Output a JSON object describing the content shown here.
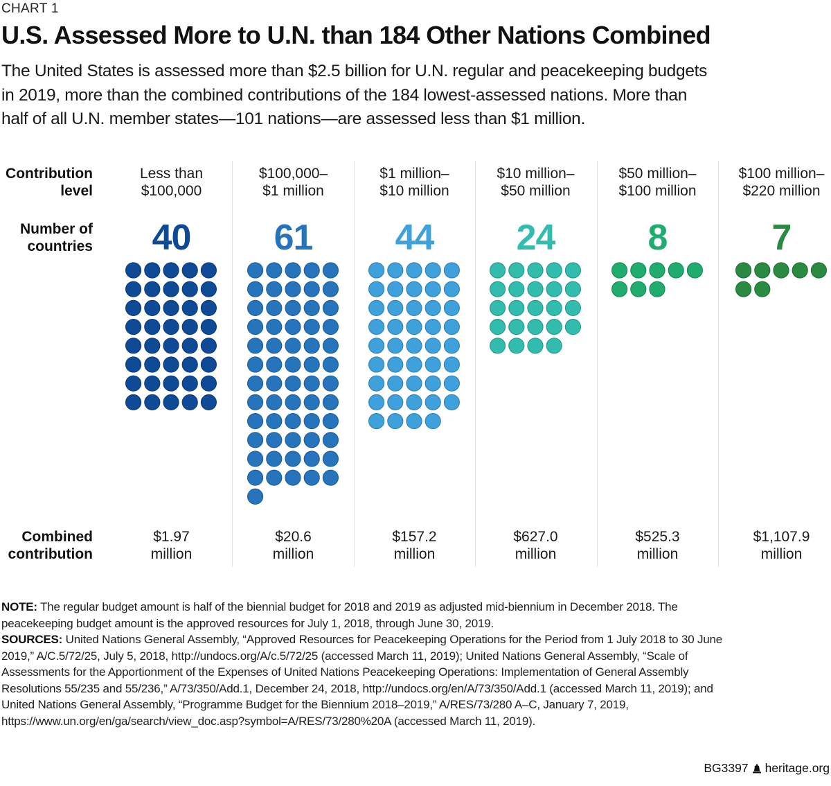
{
  "header": {
    "kicker": "CHART 1",
    "title": "U.S. Assessed More to U.N. than 184 Other Nations Combined",
    "subtitle_lines": [
      "The United States is assessed more than $2.5 billion for U.N. regular and peacekeeping budgets",
      "in 2019, more than the combined contributions of the 184 lowest-assessed nations. More than",
      "half of all U.N. member states—101 nations—are assessed less than $1 million."
    ]
  },
  "row_labels": {
    "contribution_level": [
      "Contribution",
      "level"
    ],
    "number_of_countries": [
      "Number of",
      "countries"
    ],
    "combined_contribution": [
      "Combined",
      "contribution"
    ]
  },
  "chart_data": {
    "type": "table",
    "title": "U.S. Assessed More to U.N. than 184 Other Nations Combined",
    "description": "Pictogram: each dot represents one country, grouped by U.N. assessment level (2019)",
    "dots_per_row": 5,
    "columns": [
      {
        "level_lines": [
          "Less than",
          "$100,000"
        ],
        "countries": 40,
        "combined_lines": [
          "$1.97",
          "million"
        ],
        "combined_millions": 1.97,
        "color": "#0f4a96"
      },
      {
        "level_lines": [
          "$100,000–",
          "$1 million"
        ],
        "countries": 61,
        "combined_lines": [
          "$20.6",
          "million"
        ],
        "combined_millions": 20.6,
        "color": "#2675bc"
      },
      {
        "level_lines": [
          "$1 million–",
          "$10 million"
        ],
        "countries": 44,
        "combined_lines": [
          "$157.2",
          "million"
        ],
        "combined_millions": 157.2,
        "color": "#3ea1dc"
      },
      {
        "level_lines": [
          "$10 million–",
          "$50 million"
        ],
        "countries": 24,
        "combined_lines": [
          "$627.0",
          "million"
        ],
        "combined_millions": 627.0,
        "color": "#32bcae"
      },
      {
        "level_lines": [
          "$50 million–",
          "$100 million"
        ],
        "countries": 8,
        "combined_lines": [
          "$525.3",
          "million"
        ],
        "combined_millions": 525.3,
        "color": "#1fac6e"
      },
      {
        "level_lines": [
          "$100 million–",
          "$220 million"
        ],
        "countries": 7,
        "combined_lines": [
          "$1,107.9",
          "million"
        ],
        "combined_millions": 1107.9,
        "color": "#2a8a42"
      }
    ]
  },
  "notes": {
    "note_label": "NOTE:",
    "note_lines": [
      " The regular budget amount is half of the biennial budget for 2018 and 2019 as adjusted mid-biennium in December 2018. The",
      "peacekeeping budget amount is the approved resources for July 1, 2018, through June 30, 2019."
    ],
    "sources_label": "SOURCES:",
    "sources_lines": [
      " United Nations General Assembly, “Approved Resources for Peacekeeping Operations for the Period from 1 July 2018 to 30 June",
      "2019,” A/C.5/72/25, July 5, 2018, http://undocs.org/A/c.5/72/25 (accessed March 11, 2019); United Nations General Assembly, “Scale of",
      "Assessments for the Apportionment of the Expenses of United Nations Peacekeeping Operations: Implementation of General Assembly",
      "Resolutions 55/235 and 55/236,” A/73/350/Add.1, December 24, 2018, http://undocs.org/en/A/73/350/Add.1 (accessed March 11, 2019); and",
      "United Nations General Assembly, “Programme Budget for the Biennium 2018–2019,” A/RES/73/280 A–C, January 7, 2019,",
      "https://www.un.org/en/ga/search/view_doc.asp?symbol=A/RES/73/280%20A (accessed March 11, 2019)."
    ]
  },
  "footer": {
    "code": "BG3397",
    "icon": "liberty-bell-icon",
    "site": "heritage.org"
  }
}
